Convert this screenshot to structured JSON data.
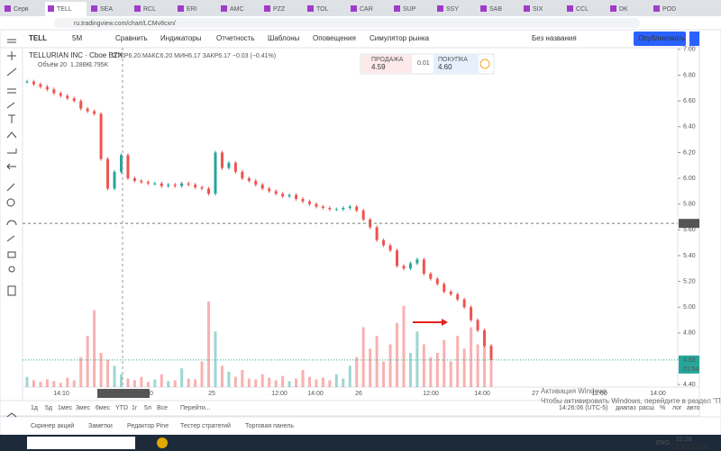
{
  "browser": {
    "tabs": [
      "Серв",
      "TELL",
      "SEA",
      "RCL",
      "ERI",
      "AMC",
      "PZZ",
      "TOL",
      "CAR",
      "SUP",
      "SSY",
      "SAB",
      "SIX",
      "CCL",
      "DK",
      "POD"
    ],
    "address": "ru.tradingview.com/chart/LCMv8cxn/"
  },
  "toolbar": {
    "symbol": "TELL",
    "interval": "5M",
    "items": [
      "Сравнить",
      "Индикаторы",
      "Отчетность",
      "Шаблоны",
      "Оповещения",
      "Симулятор рынка"
    ],
    "layout_name": "Без названия",
    "publish": "Опубликовать"
  },
  "legend": {
    "title": "TELLURIAN INC · Cboe BZX",
    "ohlc": "ОТКР6.20 МАКС6.20 МИН6.17 ЗАКР6.17 −0.03 (−0.41%)",
    "volume": "Объём 20",
    "volume_values": [
      "1.288K",
      "3.795K"
    ]
  },
  "trade": {
    "sell_label": "ПРОДАЖА",
    "sell": "4.59",
    "spread": "0.01",
    "buy_label": "ПОКУПКА",
    "buy": "4.60"
  },
  "chart_data": {
    "type": "candlestick",
    "closes": [
      6.75,
      6.73,
      6.71,
      6.69,
      6.66,
      6.64,
      6.62,
      6.6,
      6.54,
      6.52,
      6.5,
      6.15,
      5.92,
      6.05,
      6.18,
      6.0,
      5.98,
      5.97,
      5.96,
      5.96,
      5.94,
      5.95,
      5.94,
      5.96,
      5.95,
      5.93,
      5.92,
      5.88,
      6.2,
      6.08,
      6.12,
      6.05,
      6.0,
      5.98,
      5.95,
      5.92,
      5.9,
      5.88,
      5.86,
      5.87,
      5.84,
      5.82,
      5.8,
      5.78,
      5.77,
      5.76,
      5.76,
      5.77,
      5.78,
      5.75,
      5.68,
      5.62,
      5.52,
      5.48,
      5.44,
      5.32,
      5.3,
      5.34,
      5.37,
      5.26,
      5.22,
      5.18,
      5.12,
      5.1,
      5.06,
      5.0,
      4.9,
      4.82,
      4.7,
      4.59
    ],
    "volumes": [
      1.2,
      0.8,
      0.6,
      0.9,
      0.7,
      0.5,
      1.1,
      0.8,
      3.5,
      6.0,
      9.0,
      4.0,
      3.2,
      2.5,
      1.5,
      1.0,
      0.8,
      1.2,
      0.6,
      0.9,
      1.5,
      0.7,
      0.8,
      2.2,
      1.0,
      0.9,
      3.0,
      10.0,
      6.5,
      2.5,
      1.8,
      1.2,
      2.0,
      1.0,
      0.9,
      1.5,
      1.1,
      0.8,
      1.3,
      0.7,
      1.0,
      2.0,
      1.2,
      0.9,
      1.1,
      0.8,
      1.5,
      1.0,
      2.5,
      3.5,
      7.0,
      4.5,
      6.0,
      3.0,
      5.0,
      7.5,
      9.5,
      4.0,
      6.5,
      5.0,
      3.5,
      4.0,
      5.5,
      3.0,
      6.0,
      4.5,
      7.0,
      5.0,
      6.5,
      3.0
    ],
    "ylim": [
      4.38,
      7.02
    ],
    "yticks": [
      {
        "value": 7.0,
        "label": "7.00"
      },
      {
        "value": 6.8,
        "label": "6.80"
      },
      {
        "value": 6.6,
        "label": "6.60"
      },
      {
        "value": 6.4,
        "label": "6.40"
      },
      {
        "value": 6.2,
        "label": "6.20"
      },
      {
        "value": 6.0,
        "label": "6.00"
      },
      {
        "value": 5.8,
        "label": "5.80"
      },
      {
        "value": 5.6,
        "label": "5.60"
      },
      {
        "value": 5.4,
        "label": "5.40"
      },
      {
        "value": 5.2,
        "label": "5.20"
      },
      {
        "value": 5.0,
        "label": "5.00"
      },
      {
        "value": 4.8,
        "label": "4.80"
      },
      {
        "value": 4.6,
        "label": "4.60"
      },
      {
        "value": 4.4,
        "label": "4.40"
      }
    ],
    "time_labels": [
      "14:10",
      "20",
      "25",
      "12:00",
      "14:00",
      "26",
      "12:00",
      "14:00",
      "27",
      "12:00",
      "14:00"
    ],
    "crosshair_price": {
      "value": 5.65,
      "label": "5.65"
    },
    "crosshair_time": "24 Фев '20   10:20",
    "last_price": {
      "value": 4.59,
      "label": "4.59"
    },
    "countdown": "01:54"
  },
  "bottom": {
    "ranges": [
      "1д",
      "5д",
      "1мес",
      "3мес",
      "6мес",
      "YTD",
      "1г",
      "5л",
      "Все",
      "Перейти..."
    ],
    "clock": "14:26:06 (UTC-5)",
    "options": [
      "диапаз",
      "расш",
      "%",
      "лог",
      "авто"
    ]
  },
  "panels": [
    "Скринер акций",
    "Заметки",
    "Редактор Pine",
    "Тестер стратегий",
    "Торговая панель"
  ],
  "watermark": {
    "title": "Активация Windows",
    "text": "Чтобы активировать Windows, перейдите в раздел \"Параметры\"."
  },
  "taskbar": {
    "lang": "ENG",
    "time": "22:26",
    "date": "26.02.2020"
  }
}
